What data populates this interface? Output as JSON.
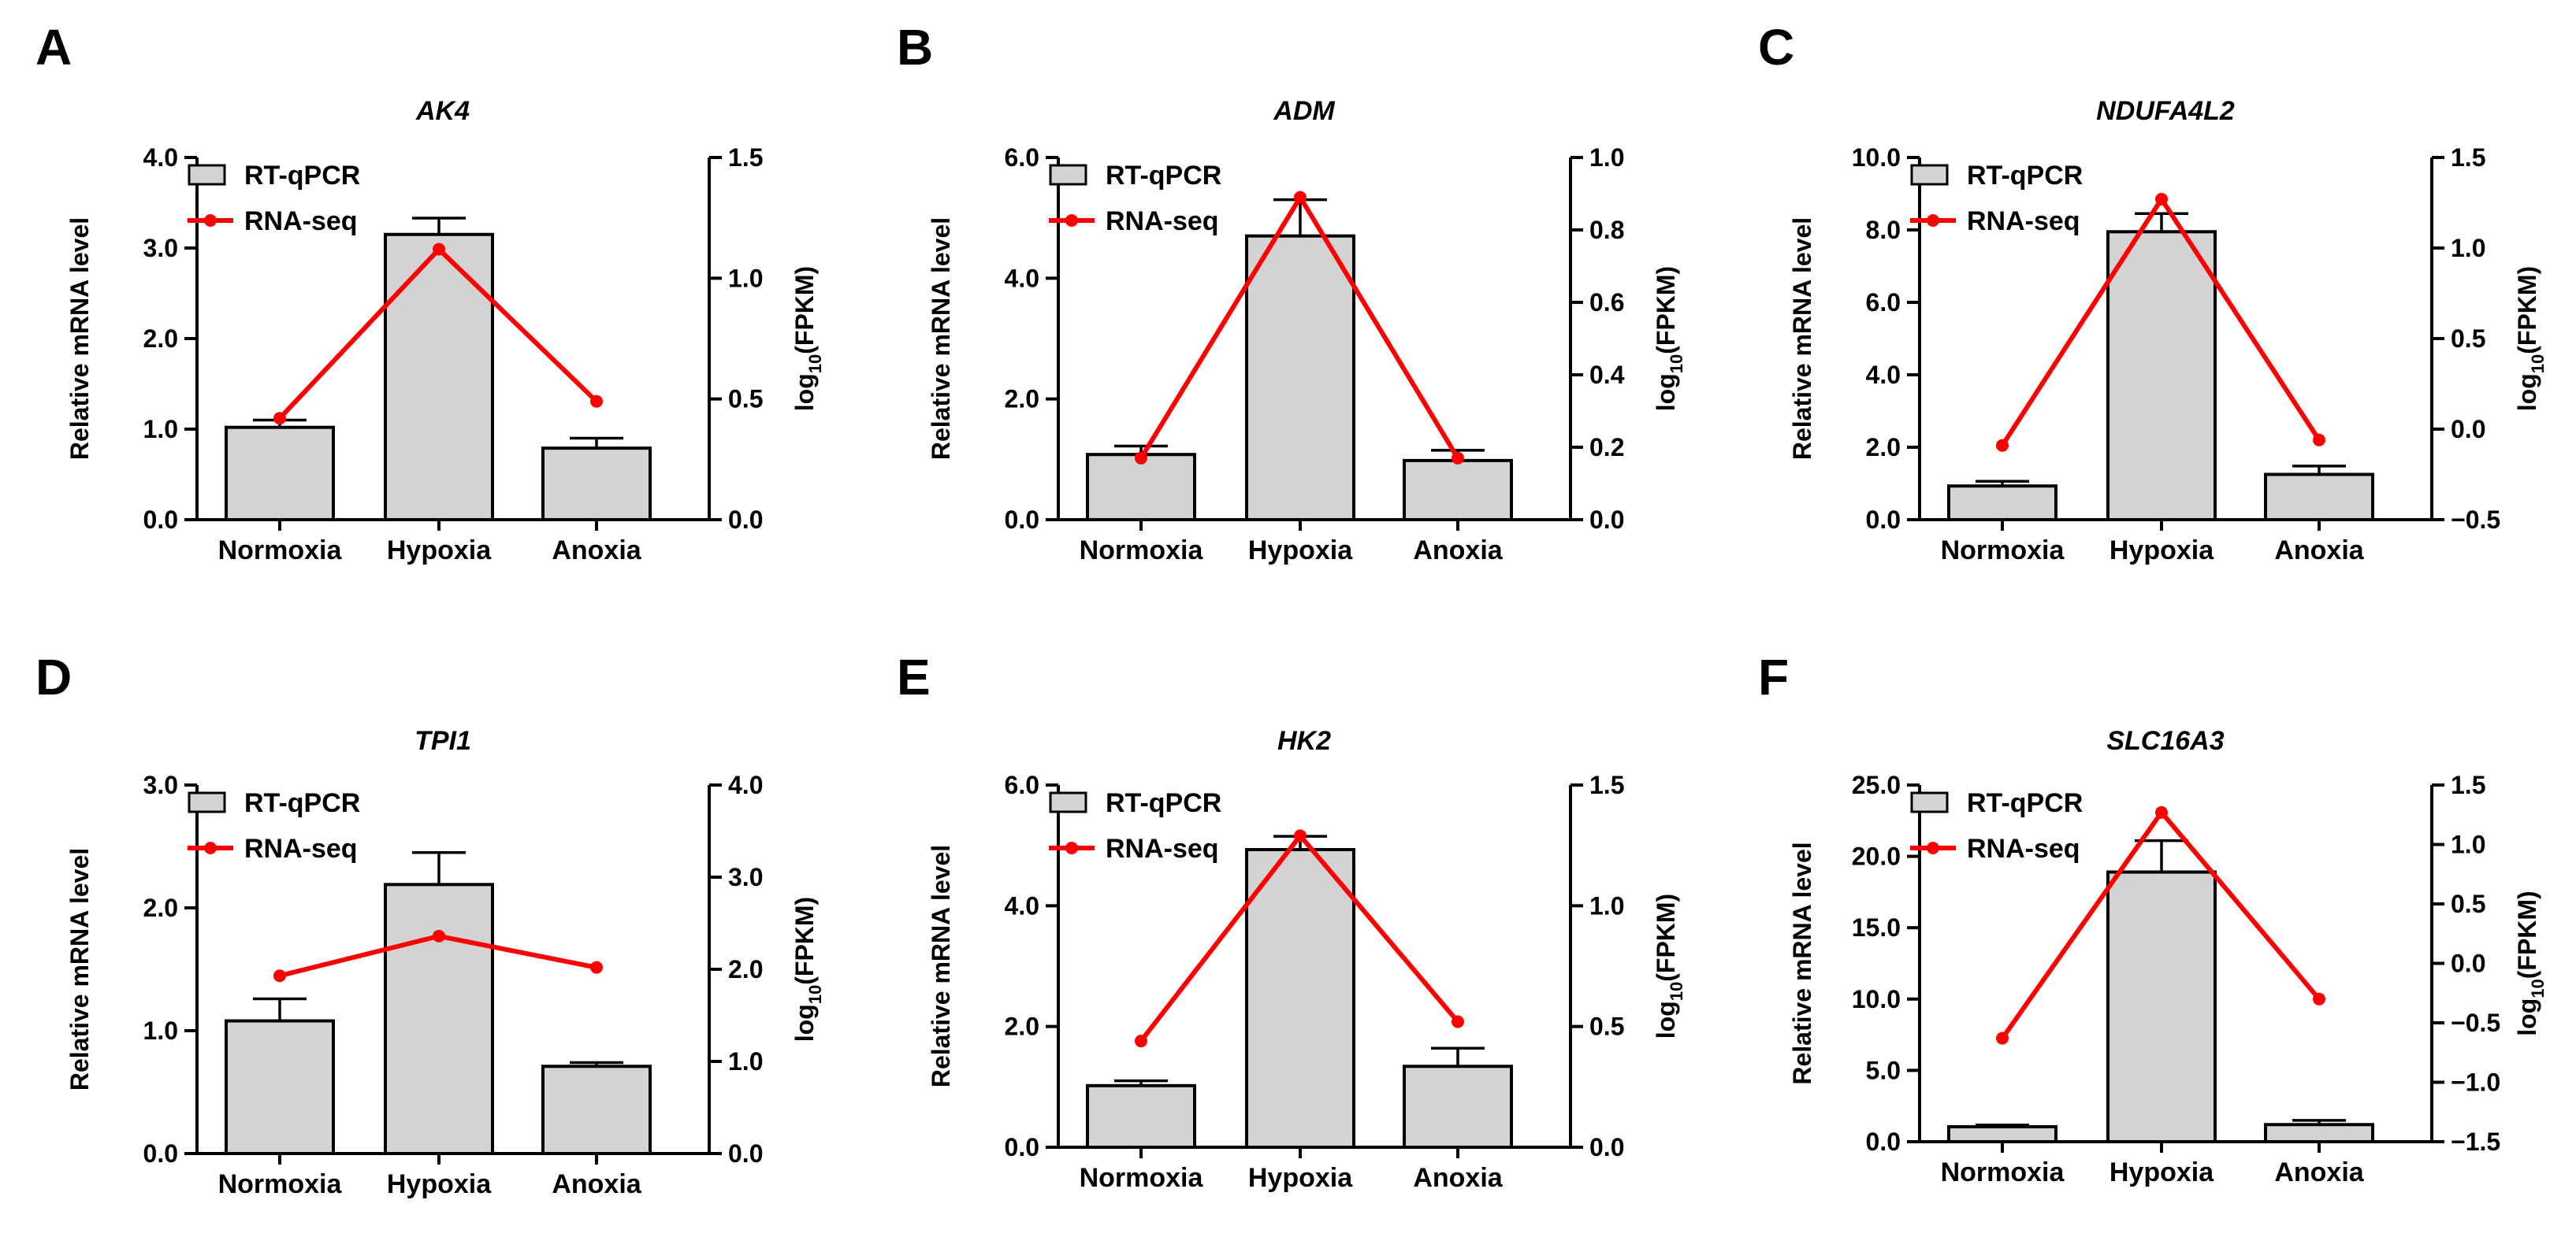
{
  "colors": {
    "bar_fill": "#d3d3d3",
    "bar_stroke": "#000000",
    "line": "#ff0000",
    "axis": "#000000"
  },
  "legend": {
    "bar_label": "RT-qPCR",
    "line_label": "RNA-seq",
    "placement": "top-left"
  },
  "chart_data": [
    {
      "panel": "A",
      "type": "bar",
      "title": "AK4",
      "categories": [
        "Normoxia",
        "Hypoxia",
        "Anoxia"
      ],
      "ylabel": "Relative mRNA level",
      "y2label": {
        "base": "log",
        "sub": "10",
        "rest": "(FPKM)"
      },
      "ylim": [
        0,
        4
      ],
      "yticks": [
        0,
        1,
        2,
        3,
        4
      ],
      "ytick_labels": [
        "0.0",
        "1.0",
        "2.0",
        "3.0",
        "4.0"
      ],
      "y2lim": [
        0,
        1.5
      ],
      "y2ticks": [
        0,
        0.5,
        1.0,
        1.5
      ],
      "y2tick_labels": [
        "0.0",
        "0.5",
        "1.0",
        "1.5"
      ],
      "series": [
        {
          "name": "RT-qPCR",
          "axis": "left",
          "kind": "bar",
          "values": [
            1.02,
            3.15,
            0.79
          ],
          "errors": [
            0.08,
            0.18,
            0.11
          ]
        },
        {
          "name": "RNA-seq",
          "axis": "right",
          "kind": "line",
          "values": [
            0.42,
            1.12,
            0.49
          ]
        }
      ]
    },
    {
      "panel": "B",
      "type": "bar",
      "title": "ADM",
      "categories": [
        "Normoxia",
        "Hypoxia",
        "Anoxia"
      ],
      "ylabel": "Relative mRNA level",
      "y2label": {
        "base": "log",
        "sub": "10",
        "rest": "(FPKM)"
      },
      "ylim": [
        0,
        6
      ],
      "yticks": [
        0,
        2,
        4,
        6
      ],
      "ytick_labels": [
        "0.0",
        "2.0",
        "4.0",
        "6.0"
      ],
      "y2lim": [
        0,
        1.0
      ],
      "y2ticks": [
        0,
        0.2,
        0.4,
        0.6,
        0.8,
        1.0
      ],
      "y2tick_labels": [
        "0.0",
        "0.2",
        "0.4",
        "0.6",
        "0.8",
        "1.0"
      ],
      "series": [
        {
          "name": "RT-qPCR",
          "axis": "left",
          "kind": "bar",
          "values": [
            1.08,
            4.7,
            0.98
          ],
          "errors": [
            0.14,
            0.6,
            0.17
          ]
        },
        {
          "name": "RNA-seq",
          "axis": "right",
          "kind": "line",
          "values": [
            0.17,
            0.89,
            0.17
          ]
        }
      ]
    },
    {
      "panel": "C",
      "type": "bar",
      "title": "NDUFA4L2",
      "categories": [
        "Normoxia",
        "Hypoxia",
        "Anoxia"
      ],
      "ylabel": "Relative mRNA level",
      "y2label": {
        "base": "log",
        "sub": "10",
        "rest": "(FPKM)"
      },
      "ylim": [
        0,
        10
      ],
      "yticks": [
        0,
        2,
        4,
        6,
        8,
        10
      ],
      "ytick_labels": [
        "0.0",
        "2.0",
        "4.0",
        "6.0",
        "8.0",
        "10.0"
      ],
      "y2lim": [
        -0.5,
        1.5
      ],
      "y2ticks": [
        -0.5,
        0,
        0.5,
        1.0,
        1.5
      ],
      "y2tick_labels": [
        "−0.5",
        "0.0",
        "0.5",
        "1.0",
        "1.5"
      ],
      "series": [
        {
          "name": "RT-qPCR",
          "axis": "left",
          "kind": "bar",
          "values": [
            0.93,
            7.95,
            1.25
          ],
          "errors": [
            0.13,
            0.5,
            0.23
          ]
        },
        {
          "name": "RNA-seq",
          "axis": "right",
          "kind": "line",
          "values": [
            -0.09,
            1.27,
            -0.06
          ]
        }
      ]
    },
    {
      "panel": "D",
      "type": "bar",
      "title": "TPI1",
      "categories": [
        "Normoxia",
        "Hypoxia",
        "Anoxia"
      ],
      "ylabel": "Relative mRNA level",
      "y2label": {
        "base": "log",
        "sub": "10",
        "rest": "(FPKM)"
      },
      "ylim": [
        0,
        3
      ],
      "yticks": [
        0,
        1,
        2,
        3
      ],
      "ytick_labels": [
        "0.0",
        "1.0",
        "2.0",
        "3.0"
      ],
      "y2lim": [
        0,
        4
      ],
      "y2ticks": [
        0,
        1,
        2,
        3,
        4
      ],
      "y2tick_labels": [
        "0.0",
        "1.0",
        "2.0",
        "3.0",
        "4.0"
      ],
      "series": [
        {
          "name": "RT-qPCR",
          "axis": "left",
          "kind": "bar",
          "values": [
            1.08,
            2.19,
            0.71
          ],
          "errors": [
            0.18,
            0.26,
            0.03
          ]
        },
        {
          "name": "RNA-seq",
          "axis": "right",
          "kind": "line",
          "values": [
            1.93,
            2.36,
            2.02
          ]
        }
      ]
    },
    {
      "panel": "E",
      "type": "bar",
      "title": "HK2",
      "categories": [
        "Normoxia",
        "Hypoxia",
        "Anoxia"
      ],
      "ylabel": "Relative mRNA level",
      "y2label": {
        "base": "log",
        "sub": "10",
        "rest": "(FPKM)"
      },
      "ylim": [
        0,
        6
      ],
      "yticks": [
        0,
        2,
        4,
        6
      ],
      "ytick_labels": [
        "0.0",
        "2.0",
        "4.0",
        "6.0"
      ],
      "y2lim": [
        0,
        1.5
      ],
      "y2ticks": [
        0,
        0.5,
        1.0,
        1.5
      ],
      "y2tick_labels": [
        "0.0",
        "0.5",
        "1.0",
        "1.5"
      ],
      "series": [
        {
          "name": "RT-qPCR",
          "axis": "left",
          "kind": "bar",
          "values": [
            1.02,
            4.93,
            1.34
          ],
          "errors": [
            0.08,
            0.22,
            0.3
          ]
        },
        {
          "name": "RNA-seq",
          "axis": "right",
          "kind": "line",
          "values": [
            0.44,
            1.29,
            0.52
          ]
        }
      ]
    },
    {
      "panel": "F",
      "type": "bar",
      "title": "SLC16A3",
      "categories": [
        "Normoxia",
        "Hypoxia",
        "Anoxia"
      ],
      "ylabel": "Relative mRNA level",
      "y2label": {
        "base": "log",
        "sub": "10",
        "rest": "(FPKM)"
      },
      "ylim": [
        0,
        25
      ],
      "yticks": [
        0,
        5,
        10,
        15,
        20,
        25
      ],
      "ytick_labels": [
        "0.0",
        "5.0",
        "10.0",
        "15.0",
        "20.0",
        "25.0"
      ],
      "y2lim": [
        -1.5,
        1.5
      ],
      "y2ticks": [
        -1.5,
        -1.0,
        -0.5,
        0,
        0.5,
        1.0,
        1.5
      ],
      "y2tick_labels": [
        "−1.5",
        "−1.0",
        "−0.5",
        "0.0",
        "0.5",
        "1.0",
        "1.5"
      ],
      "series": [
        {
          "name": "RT-qPCR",
          "axis": "left",
          "kind": "bar",
          "values": [
            1.05,
            18.9,
            1.2
          ],
          "errors": [
            0.12,
            2.2,
            0.3
          ]
        },
        {
          "name": "RNA-seq",
          "axis": "right",
          "kind": "line",
          "values": [
            -0.63,
            1.27,
            -0.3
          ]
        }
      ]
    }
  ]
}
